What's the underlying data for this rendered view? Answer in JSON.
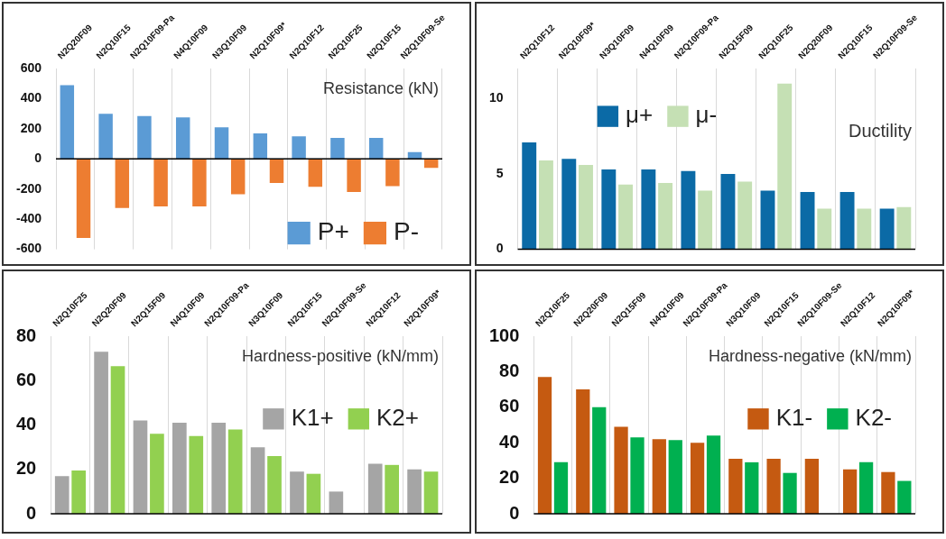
{
  "chart_data": [
    {
      "type": "bar",
      "title": "Resistance (kN)",
      "categories": [
        "N2Q20F09",
        "N2Q10F15",
        "N2Q10F09-Pa",
        "N4Q10F09",
        "N3Q10F09",
        "N2Q10F09*",
        "N2Q10F12",
        "N2Q10F25",
        "N2Q10F15",
        "N2Q10F09-Se"
      ],
      "series": [
        {
          "name": "P+",
          "color": "#5b9bd5",
          "values": [
            490,
            300,
            285,
            275,
            210,
            170,
            150,
            140,
            140,
            45
          ]
        },
        {
          "name": "P-",
          "color": "#ed7d31",
          "values": [
            -525,
            -325,
            -315,
            -315,
            -235,
            -160,
            -185,
            -220,
            -180,
            -60
          ]
        }
      ],
      "ylim": [
        -600,
        600
      ],
      "yticks": [
        -600,
        -400,
        -200,
        0,
        200,
        400,
        600
      ],
      "grid": "x",
      "legend": "bottom right"
    },
    {
      "type": "bar",
      "title": "Ductility",
      "categories": [
        "N2Q10F12",
        "N2Q10F09*",
        "N3Q10F09",
        "N4Q10F09",
        "N2Q10F09-Pa",
        "N2Q15F09",
        "N2Q10F25",
        "N2Q20F09",
        "N2Q10F15",
        "N2Q10F09-Se"
      ],
      "series": [
        {
          "name": "μ+",
          "color": "#0b6aa6",
          "values": [
            7.1,
            6.0,
            5.3,
            5.3,
            5.2,
            5.0,
            3.9,
            3.8,
            3.8,
            2.7
          ]
        },
        {
          "name": "μ-",
          "color": "#c5e0b4",
          "values": [
            5.9,
            5.6,
            4.3,
            4.4,
            3.9,
            4.5,
            11.0,
            2.7,
            2.7,
            2.8
          ]
        }
      ],
      "ylim": [
        0,
        12
      ],
      "yticks": [
        0,
        5,
        10
      ],
      "grid": "x",
      "legend": "top left"
    },
    {
      "type": "bar",
      "title": "Hardness-positive (kN/mm)",
      "categories": [
        "N2Q10F25",
        "N2Q20F09",
        "N2Q15F09",
        "N4Q10F09",
        "N2Q10F09-Pa",
        "N3Q10F09",
        "N2Q10F15",
        "N2Q10F09-Se",
        "N2Q10F12",
        "N2Q10F09*"
      ],
      "series": [
        {
          "name": "K1+",
          "color": "#a5a5a5",
          "values": [
            17,
            73,
            42,
            41,
            41,
            30,
            19,
            10,
            22.5,
            20
          ]
        },
        {
          "name": "K2+",
          "color": "#92d050",
          "values": [
            19.5,
            66.5,
            36,
            35,
            38,
            26,
            18,
            null,
            22,
            19
          ]
        }
      ],
      "ylim": [
        0,
        80
      ],
      "yticks": [
        0,
        20,
        40,
        60,
        80
      ],
      "grid": "x",
      "legend": "right"
    },
    {
      "type": "bar",
      "title": "Hardness-negative (kN/mm)",
      "categories": [
        "N2Q10F25",
        "N2Q20F09",
        "N2Q15F09",
        "N4Q10F09",
        "N2Q10F09-Pa",
        "N3Q10F09",
        "N2Q10F15",
        "N2Q10F09-Se",
        "N2Q10F12",
        "N2Q10F09*"
      ],
      "series": [
        {
          "name": "K1-",
          "color": "#c55a11",
          "values": [
            77,
            70,
            49,
            42,
            40,
            31,
            31,
            31,
            25,
            23.5
          ]
        },
        {
          "name": "K2-",
          "color": "#00b050",
          "values": [
            29,
            60,
            43,
            41.5,
            44,
            29,
            23,
            null,
            29,
            18.5
          ]
        }
      ],
      "ylim": [
        0,
        100
      ],
      "yticks": [
        0,
        20,
        40,
        60,
        80,
        100
      ],
      "grid": "x",
      "legend": "right"
    }
  ]
}
